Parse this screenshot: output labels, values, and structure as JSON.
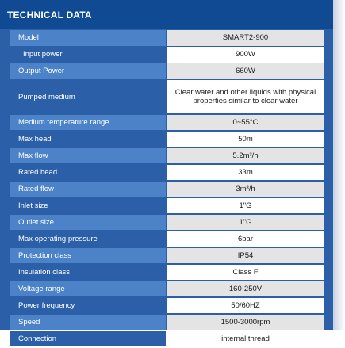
{
  "header": {
    "title": "TECHNICAL DATA"
  },
  "rows": [
    {
      "label": "Model",
      "value": "SMART2-900"
    },
    {
      "label": "Input power",
      "value": "900W"
    },
    {
      "label": "Output Power",
      "value": "660W"
    },
    {
      "label": "Pumped medium",
      "value": "Clear water and other liquids with physical properties similar to clear water"
    },
    {
      "label": "Medium temperature range",
      "value": "0~55°C"
    },
    {
      "label": "Max head",
      "value": "50m"
    },
    {
      "label": "Max flow",
      "value": "5.2m³/h"
    },
    {
      "label": "Rated head",
      "value": "33m"
    },
    {
      "label": "Rated flow",
      "value": "3m³/h"
    },
    {
      "label": "Inlet size",
      "value": "1\"G"
    },
    {
      "label": "Outlet size",
      "value": "1\"G"
    },
    {
      "label": "Max operating pressure",
      "value": "6bar"
    },
    {
      "label": "Protection class",
      "value": "IP54"
    },
    {
      "label": "Insulation class",
      "value": "Class F"
    },
    {
      "label": "Voltage range",
      "value": "160-250V"
    },
    {
      "label": "Power frequency",
      "value": "50/60HZ"
    },
    {
      "label": "Speed",
      "value": "1500-3000rpm"
    },
    {
      "label": "Connection",
      "value": "internal thread"
    }
  ],
  "colors": {
    "header_bg": "#0f4a93",
    "panel_bg": "#2b60a8",
    "label_alt_bg": "#4c83c8",
    "value_alt_bg": "#e4e4e4",
    "value_bg": "#ffffff"
  }
}
